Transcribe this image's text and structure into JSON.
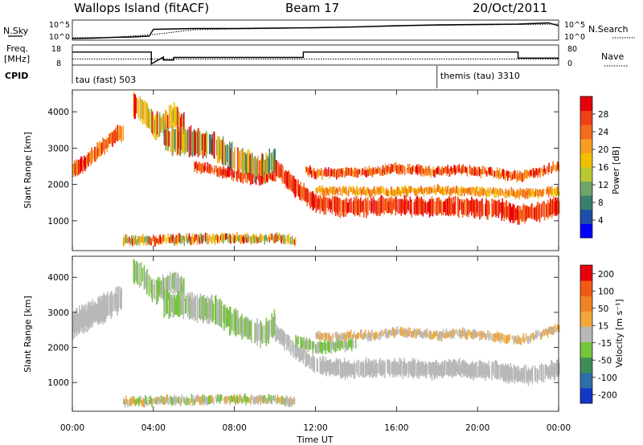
{
  "header": {
    "site": "Wallops Island (fitACF)",
    "beam": "Beam 17",
    "date": "20/Oct/2011"
  },
  "summary_panels": {
    "nsky_label": "N.Sky",
    "nsearch_label": "N.Search",
    "noise_ticks": [
      "10^5",
      "10^0"
    ],
    "freq_label_1": "Freq.",
    "freq_label_2": "[MHz]",
    "freq_ticks": [
      "18",
      "8"
    ],
    "nave_label": "Nave",
    "nave_ticks": [
      "80",
      "0"
    ],
    "cpid_label": "CPID",
    "cpid_modes": [
      {
        "name": "tau (fast) 503",
        "start_hour": 0
      },
      {
        "name": "themis (tau) 3310",
        "start_hour": 18
      }
    ]
  },
  "colorbars": {
    "power": {
      "label": "Power [dB]",
      "ticks": [
        "4",
        "8",
        "12",
        "16",
        "20",
        "24",
        "28"
      ],
      "colors": [
        "#0000ff",
        "#1e4fa8",
        "#3a7f6e",
        "#6fa46a",
        "#b8c832",
        "#f0c000",
        "#f79e1f",
        "#f36b1d",
        "#f04015",
        "#e8000b"
      ]
    },
    "velocity": {
      "label": "Velocity [m s⁻¹]",
      "ticks": [
        "200",
        "100",
        "50",
        "15",
        "-15",
        "-50",
        "-100",
        "-200"
      ],
      "colors": [
        "#1437c8",
        "#2d6fa7",
        "#3f8d55",
        "#75c43d",
        "#b8b8b8",
        "#f0a73a",
        "#f18321",
        "#f05a15",
        "#e8000b"
      ]
    }
  },
  "chart_data": {
    "type": "heatmap",
    "xlabel": "Time UT",
    "x_ticks": [
      "00:00",
      "04:00",
      "08:00",
      "12:00",
      "16:00",
      "20:00",
      "00:00"
    ],
    "xlim_hours": [
      0,
      24
    ],
    "ylabel": "Slant Range [km]",
    "y_ticks": [
      "1000",
      "2000",
      "3000",
      "4000"
    ],
    "ylim_km": [
      180,
      4600
    ],
    "echo_bands_power": [
      {
        "hours": [
          0,
          0.5,
          1,
          1.5,
          2,
          2.5
        ],
        "center_km": [
          2400,
          2550,
          2800,
          3050,
          3300,
          3450
        ],
        "width_km": 380,
        "colors": [
          "#e8000b",
          "#f36b1d",
          "#f79e1f"
        ]
      },
      {
        "hours": [
          3,
          3.5,
          4,
          4.5,
          5,
          5.5
        ],
        "center_km": [
          4200,
          4000,
          3600,
          3700,
          3900,
          3600
        ],
        "width_km": 600,
        "colors": [
          "#f79e1f",
          "#f0c000",
          "#6fa46a",
          "#e8000b"
        ]
      },
      {
        "hours": [
          4.5,
          5,
          6,
          7,
          8,
          9,
          9.5,
          10
        ],
        "center_km": [
          3300,
          3200,
          3150,
          3050,
          2700,
          2450,
          2400,
          2700
        ],
        "width_km": 700,
        "colors": [
          "#f79e1f",
          "#f0c000",
          "#6fa46a",
          "#3a7f6e",
          "#e8000b"
        ]
      },
      {
        "hours": [
          6,
          7,
          8,
          9,
          10
        ],
        "center_km": [
          2500,
          2400,
          2250,
          2150,
          2200
        ],
        "width_km": 250,
        "colors": [
          "#e8000b",
          "#f36b1d"
        ]
      },
      {
        "hours": [
          10,
          10.5,
          11,
          11.5,
          12,
          13,
          14,
          15,
          16,
          17,
          18,
          19,
          20,
          21,
          22,
          23,
          24
        ],
        "center_km": [
          2500,
          2200,
          1900,
          1700,
          1500,
          1400,
          1380,
          1400,
          1420,
          1380,
          1370,
          1400,
          1350,
          1330,
          1150,
          1250,
          1400
        ],
        "width_km": 450,
        "colors": [
          "#e8000b",
          "#f04015",
          "#f36b1d"
        ]
      },
      {
        "hours": [
          11.5,
          12,
          13,
          14,
          15,
          16,
          17,
          18,
          19,
          20,
          21,
          22,
          23,
          24
        ],
        "center_km": [
          2400,
          2300,
          2300,
          2350,
          2350,
          2450,
          2400,
          2350,
          2400,
          2350,
          2300,
          2200,
          2350,
          2500
        ],
        "width_km": 220,
        "colors": [
          "#f36b1d",
          "#f79e1f",
          "#e8000b"
        ]
      },
      {
        "hours": [
          12,
          14,
          16,
          18,
          20,
          22,
          24
        ],
        "center_km": [
          1850,
          1800,
          1800,
          1850,
          1800,
          1750,
          1800
        ],
        "width_km": 200,
        "colors": [
          "#f36b1d",
          "#f79e1f",
          "#f0c000"
        ]
      },
      {
        "hours": [
          2.5,
          4,
          6,
          8,
          10,
          11
        ],
        "center_km": [
          450,
          480,
          500,
          520,
          520,
          450
        ],
        "width_km": 220,
        "colors": [
          "#f79e1f",
          "#f0c000",
          "#6fa46a",
          "#e8000b"
        ]
      }
    ],
    "echo_bands_velocity": [
      {
        "hours": [
          0,
          0.5,
          1,
          1.5,
          2,
          2.5
        ],
        "center_km": [
          2650,
          2800,
          2950,
          3100,
          3300,
          3450
        ],
        "width_km": 700,
        "colors": [
          "#b8b8b8"
        ]
      },
      {
        "hours": [
          3,
          3.5,
          4,
          4.5,
          5,
          5.5
        ],
        "center_km": [
          4200,
          4000,
          3600,
          3700,
          3900,
          3600
        ],
        "width_km": 600,
        "colors": [
          "#b8b8b8",
          "#75c43d"
        ]
      },
      {
        "hours": [
          4.5,
          5,
          6,
          7,
          8,
          9,
          9.5,
          10
        ],
        "center_km": [
          3300,
          3200,
          3150,
          3050,
          2700,
          2450,
          2400,
          2700
        ],
        "width_km": 700,
        "colors": [
          "#b8b8b8",
          "#75c43d"
        ]
      },
      {
        "hours": [
          10,
          10.5,
          11,
          11.5,
          12,
          13,
          14,
          15,
          16,
          17,
          18,
          19,
          20,
          21,
          22,
          23,
          24
        ],
        "center_km": [
          2400,
          2200,
          1900,
          1700,
          1500,
          1400,
          1380,
          1400,
          1420,
          1380,
          1370,
          1400,
          1350,
          1330,
          1200,
          1250,
          1400
        ],
        "width_km": 450,
        "colors": [
          "#b8b8b8"
        ]
      },
      {
        "hours": [
          11,
          11.5,
          12,
          13,
          14
        ],
        "center_km": [
          2200,
          2100,
          2000,
          2050,
          2100
        ],
        "width_km": 300,
        "colors": [
          "#75c43d",
          "#b8b8b8"
        ]
      },
      {
        "hours": [
          12,
          13,
          14,
          15,
          16,
          17,
          18,
          19,
          20,
          21,
          22,
          23,
          24
        ],
        "center_km": [
          2300,
          2300,
          2350,
          2350,
          2450,
          2400,
          2350,
          2400,
          2350,
          2300,
          2200,
          2350,
          2550
        ],
        "width_km": 220,
        "colors": [
          "#b8b8b8",
          "#f0a73a"
        ]
      },
      {
        "hours": [
          2.5,
          4,
          6,
          8,
          10,
          11
        ],
        "center_km": [
          450,
          480,
          500,
          520,
          520,
          450
        ],
        "width_km": 220,
        "colors": [
          "#b8b8b8",
          "#75c43d",
          "#f0a73a"
        ]
      }
    ],
    "noise_nsky_log10": {
      "hours": [
        0,
        1,
        2,
        3,
        3.8,
        4,
        6,
        8,
        10,
        12,
        14,
        16,
        18,
        20,
        22,
        23.5,
        24
      ],
      "values": [
        0.4,
        0.5,
        0.7,
        0.8,
        1.0,
        2.7,
        2.9,
        2.9,
        3.0,
        3.1,
        3.3,
        3.6,
        3.8,
        3.9,
        4.0,
        4.3,
        3.6
      ]
    },
    "noise_nsearch_log10": {
      "hours": [
        0,
        2,
        4,
        6,
        8,
        10,
        12,
        14,
        16,
        18,
        20,
        22,
        24
      ],
      "values": [
        0.6,
        0.7,
        1.4,
        2.6,
        2.8,
        2.9,
        3.1,
        3.3,
        3.5,
        3.7,
        3.8,
        3.9,
        4.0
      ]
    },
    "freq_mhz": {
      "hours": [
        0,
        3.9,
        3.9,
        4.5,
        4.5,
        5.0,
        5.0,
        11.4,
        11.4,
        22.0,
        22.0,
        24
      ],
      "values": [
        14.5,
        14.5,
        8.6,
        12.0,
        10.5,
        10.5,
        11.8,
        11.8,
        14.5,
        14.5,
        11.5,
        11.5
      ]
    },
    "nave": {
      "hours": [
        0,
        4,
        4,
        24
      ],
      "values": [
        24,
        24,
        24,
        24
      ]
    }
  }
}
